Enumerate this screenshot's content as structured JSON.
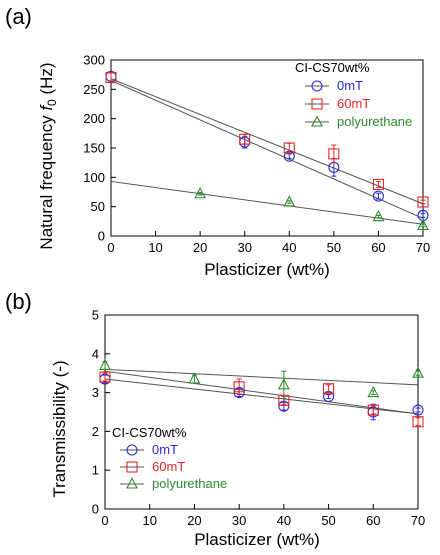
{
  "colors": {
    "axis": "#000000",
    "fit_line": "#555555"
  },
  "chart_data": [
    {
      "type": "scatter",
      "panel_label": "(a)",
      "xlabel": "Plasticizer (wt%)",
      "ylabel_main": "Natural frequency ",
      "ylabel_italic": "f",
      "ylabel_sub": "0",
      "ylabel_unit": " (Hz)",
      "xlim": [
        0,
        70
      ],
      "ylim": [
        0,
        300
      ],
      "xticks": [
        0,
        10,
        20,
        30,
        40,
        50,
        60,
        70
      ],
      "yticks": [
        0,
        50,
        100,
        150,
        200,
        250,
        300
      ],
      "grid": false,
      "legend_title": "CI-CS70wt%",
      "legend_position": "top-right",
      "series": [
        {
          "name": "0mT",
          "color": "#2b2bd6",
          "marker": "circle",
          "x": [
            0,
            30,
            40,
            50,
            60,
            70
          ],
          "y": [
            272,
            160,
            136,
            117,
            68,
            35
          ],
          "err": [
            8,
            10,
            4,
            15,
            5,
            3
          ],
          "fit": [
            [
              0,
              265
            ],
            [
              70,
              30
            ]
          ]
        },
        {
          "name": "60mT",
          "color": "#e02828",
          "marker": "square",
          "x": [
            0,
            30,
            40,
            50,
            60,
            70
          ],
          "y": [
            270,
            165,
            150,
            140,
            88,
            58
          ],
          "err": [
            8,
            8,
            8,
            15,
            5,
            3
          ],
          "fit": [
            [
              0,
              268
            ],
            [
              70,
              55
            ]
          ]
        },
        {
          "name": "polyurethane",
          "color": "#2e8b2e",
          "marker": "triangle",
          "x": [
            20,
            40,
            60,
            70
          ],
          "y": [
            72,
            58,
            33,
            18
          ],
          "err": [
            2,
            2,
            2,
            2
          ],
          "fit": [
            [
              0,
              93
            ],
            [
              70,
              20
            ]
          ]
        }
      ]
    },
    {
      "type": "scatter",
      "panel_label": "(b)",
      "xlabel": "Plasticizer (wt%)",
      "ylabel": "Transmissibility (-)",
      "xlim": [
        0,
        70
      ],
      "ylim": [
        0,
        5
      ],
      "xticks": [
        0,
        10,
        20,
        30,
        40,
        50,
        60,
        70
      ],
      "yticks": [
        0,
        1,
        2,
        3,
        4,
        5
      ],
      "grid": false,
      "legend_title": "CI-CS70wt%",
      "legend_position": "bottom-left",
      "series": [
        {
          "name": "0mT",
          "color": "#2b2bd6",
          "marker": "circle",
          "x": [
            0,
            30,
            40,
            50,
            60,
            70
          ],
          "y": [
            3.35,
            3.0,
            2.65,
            2.9,
            2.5,
            2.55
          ],
          "err": [
            0.1,
            0.1,
            0.1,
            0.05,
            0.2,
            0.05
          ],
          "fit": [
            [
              0,
              3.35
            ],
            [
              70,
              2.45
            ]
          ]
        },
        {
          "name": "60mT",
          "color": "#e02828",
          "marker": "square",
          "x": [
            0,
            30,
            40,
            50,
            60,
            70
          ],
          "y": [
            3.4,
            3.15,
            2.8,
            3.1,
            2.55,
            2.25
          ],
          "err": [
            0.1,
            0.2,
            0.1,
            0.1,
            0.1,
            0.1
          ],
          "fit": [
            [
              0,
              3.55
            ],
            [
              70,
              2.45
            ]
          ]
        },
        {
          "name": "polyurethane",
          "color": "#2e8b2e",
          "marker": "triangle",
          "x": [
            0,
            20,
            40,
            60,
            70
          ],
          "y": [
            3.7,
            3.35,
            3.2,
            3.0,
            3.5
          ],
          "err": [
            0.1,
            0.1,
            0.35,
            0.05,
            0.05
          ],
          "fit": [
            [
              0,
              3.6
            ],
            [
              70,
              3.2
            ]
          ]
        }
      ]
    }
  ]
}
